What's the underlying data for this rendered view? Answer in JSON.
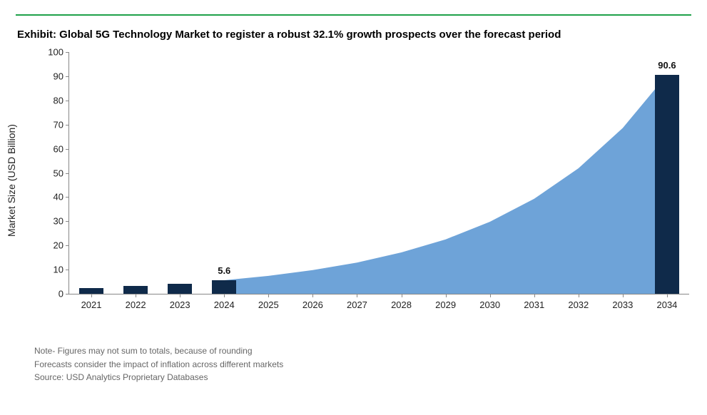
{
  "page": {
    "top_rule_color": "#1fa14a",
    "title": "Exhibit: Global 5G Technology Market to register a robust 32.1% growth prospects over the forecast period",
    "title_fontsize": 15
  },
  "chart": {
    "type": "bar+area",
    "ylabel": "Market Size (USD Billion)",
    "ylim": [
      0,
      100
    ],
    "ytick_step": 10,
    "categories": [
      "2021",
      "2022",
      "2023",
      "2024",
      "2025",
      "2026",
      "2027",
      "2028",
      "2029",
      "2030",
      "2031",
      "2032",
      "2033",
      "2034"
    ],
    "bars": {
      "indices": [
        0,
        1,
        2,
        3,
        13
      ],
      "values": [
        2.5,
        3.2,
        4.2,
        5.6,
        90.6
      ],
      "color": "#0f2a4a",
      "width_ratio": 0.55
    },
    "area": {
      "start_index": 3,
      "end_index": 13,
      "values": [
        5.6,
        7.4,
        9.8,
        12.9,
        17.1,
        22.5,
        29.8,
        39.3,
        51.9,
        68.6,
        90.6
      ],
      "fill_color": "#6ea3d8"
    },
    "data_labels": [
      {
        "index": 3,
        "text": "5.6"
      },
      {
        "index": 13,
        "text": "90.6"
      }
    ],
    "axis_font_size": 13,
    "label_font_size": 14
  },
  "notes": [
    "Note- Figures may not sum to totals, because of rounding",
    "Forecasts consider the impact of inflation across different markets",
    "Source: USD Analytics Proprietary Databases"
  ]
}
